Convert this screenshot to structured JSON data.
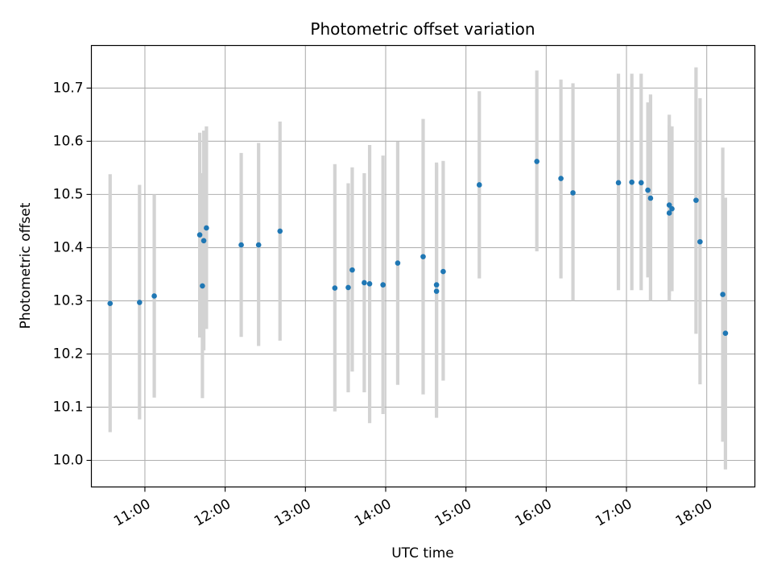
{
  "chart_data": {
    "type": "scatter",
    "title": "Photometric offset variation",
    "xlabel": "UTC time",
    "ylabel": "Photometric offset",
    "x_unit": "UTC time (HH:MM)",
    "xlim": [
      "10:20",
      "18:36"
    ],
    "ylim": [
      9.95,
      10.78
    ],
    "x_ticks": [
      "11:00",
      "12:00",
      "13:00",
      "14:00",
      "15:00",
      "16:00",
      "17:00",
      "18:00"
    ],
    "y_ticks": [
      10.0,
      10.1,
      10.2,
      10.3,
      10.4,
      10.5,
      10.6,
      10.7
    ],
    "y_tick_labels": [
      "10.0",
      "10.1",
      "10.2",
      "10.3",
      "10.4",
      "10.5",
      "10.6",
      "10.7"
    ],
    "grid": true,
    "point_color": "#1f77b4",
    "errorbar_color": "#d3d3d3",
    "series": [
      {
        "points": [
          {
            "x": "10:34",
            "y": 10.295,
            "lo": 10.053,
            "hi": 10.538
          },
          {
            "x": "10:56",
            "y": 10.297,
            "lo": 10.077,
            "hi": 10.518
          },
          {
            "x": "11:07",
            "y": 10.309,
            "lo": 10.118,
            "hi": 10.5
          },
          {
            "x": "11:41",
            "y": 10.424,
            "lo": 10.231,
            "hi": 10.616
          },
          {
            "x": "11:43",
            "y": 10.328,
            "lo": 10.117,
            "hi": 10.54
          },
          {
            "x": "11:44",
            "y": 10.413,
            "lo": 10.207,
            "hi": 10.62
          },
          {
            "x": "11:46",
            "y": 10.437,
            "lo": 10.247,
            "hi": 10.628
          },
          {
            "x": "12:12",
            "y": 10.405,
            "lo": 10.232,
            "hi": 10.578
          },
          {
            "x": "12:25",
            "y": 10.405,
            "lo": 10.215,
            "hi": 10.597
          },
          {
            "x": "12:41",
            "y": 10.431,
            "lo": 10.225,
            "hi": 10.637
          },
          {
            "x": "13:22",
            "y": 10.324,
            "lo": 10.092,
            "hi": 10.557
          },
          {
            "x": "13:32",
            "y": 10.325,
            "lo": 10.128,
            "hi": 10.521
          },
          {
            "x": "13:35",
            "y": 10.358,
            "lo": 10.167,
            "hi": 10.551
          },
          {
            "x": "13:44",
            "y": 10.334,
            "lo": 10.128,
            "hi": 10.54
          },
          {
            "x": "13:48",
            "y": 10.332,
            "lo": 10.07,
            "hi": 10.593
          },
          {
            "x": "13:58",
            "y": 10.33,
            "lo": 10.087,
            "hi": 10.573
          },
          {
            "x": "14:09",
            "y": 10.371,
            "lo": 10.142,
            "hi": 10.599
          },
          {
            "x": "14:28",
            "y": 10.383,
            "lo": 10.124,
            "hi": 10.642
          },
          {
            "x": "14:38",
            "y": 10.33,
            "lo": 10.099,
            "hi": 10.56
          },
          {
            "x": "14:38",
            "y": 10.318,
            "lo": 10.08,
            "hi": 10.557
          },
          {
            "x": "14:43",
            "y": 10.355,
            "lo": 10.15,
            "hi": 10.563
          },
          {
            "x": "15:10",
            "y": 10.518,
            "lo": 10.342,
            "hi": 10.694
          },
          {
            "x": "15:53",
            "y": 10.562,
            "lo": 10.393,
            "hi": 10.733
          },
          {
            "x": "16:11",
            "y": 10.53,
            "lo": 10.342,
            "hi": 10.716
          },
          {
            "x": "16:20",
            "y": 10.503,
            "lo": 10.3,
            "hi": 10.709
          },
          {
            "x": "16:54",
            "y": 10.522,
            "lo": 10.32,
            "hi": 10.727
          },
          {
            "x": "17:04",
            "y": 10.523,
            "lo": 10.32,
            "hi": 10.727
          },
          {
            "x": "17:11",
            "y": 10.522,
            "lo": 10.32,
            "hi": 10.727
          },
          {
            "x": "17:16",
            "y": 10.508,
            "lo": 10.344,
            "hi": 10.673
          },
          {
            "x": "17:18",
            "y": 10.493,
            "lo": 10.3,
            "hi": 10.688
          },
          {
            "x": "17:32",
            "y": 10.48,
            "lo": 10.31,
            "hi": 10.65
          },
          {
            "x": "17:32",
            "y": 10.465,
            "lo": 10.3,
            "hi": 10.63
          },
          {
            "x": "17:34",
            "y": 10.473,
            "lo": 10.318,
            "hi": 10.628
          },
          {
            "x": "17:52",
            "y": 10.489,
            "lo": 10.238,
            "hi": 10.739
          },
          {
            "x": "17:55",
            "y": 10.411,
            "lo": 10.143,
            "hi": 10.681
          },
          {
            "x": "18:12",
            "y": 10.312,
            "lo": 10.035,
            "hi": 10.588
          },
          {
            "x": "18:14",
            "y": 10.239,
            "lo": 9.983,
            "hi": 10.494
          }
        ]
      }
    ]
  }
}
